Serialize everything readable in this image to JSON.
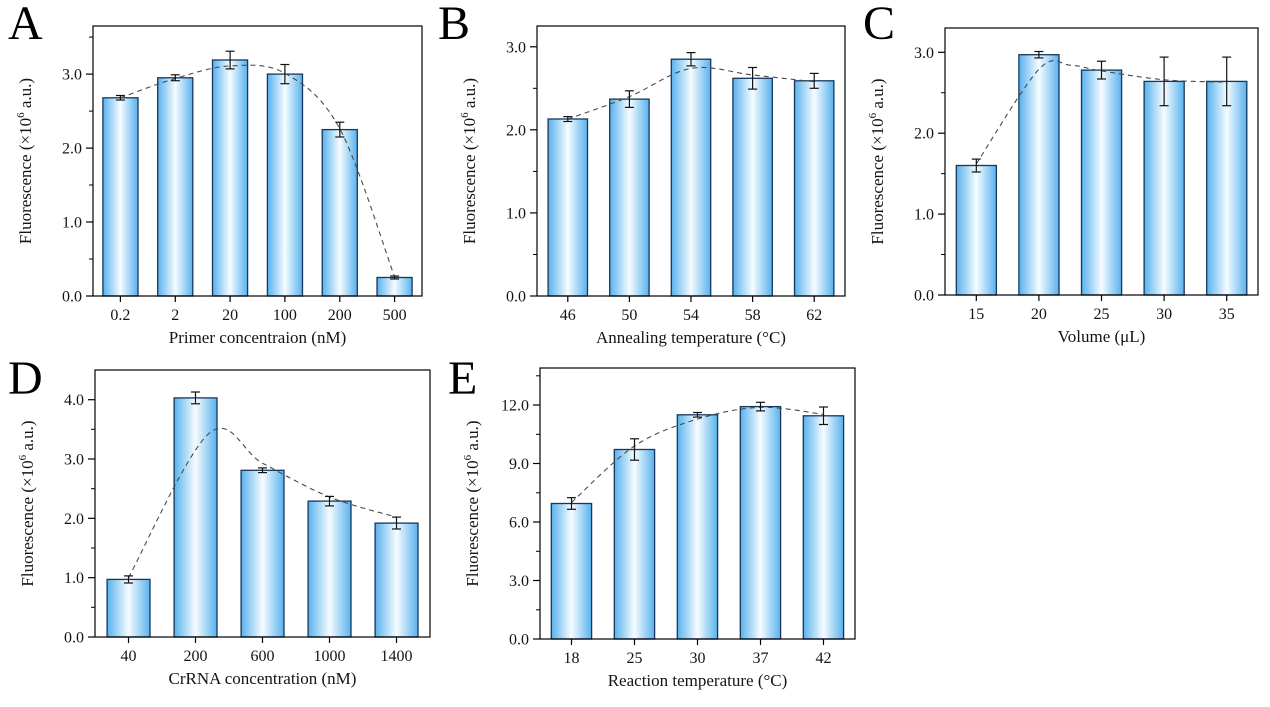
{
  "figure": {
    "background": "#ffffff",
    "description_colors": {
      "bar_edge_stroke": "#17375a",
      "bar_side_blue": "#58b2ee",
      "bar_center_highlight": "#f6fcff",
      "axis_frame": "#000000",
      "error_bar": "#111111",
      "trend_line": "#4a4a4a",
      "text": "#141414"
    }
  },
  "chart_data": [
    {
      "id": "A",
      "type": "bar",
      "panel_label": "A",
      "xlabel": "Primer concentraion (nM)",
      "ylabel_prefix": "Fluorescence (×10",
      "ylabel_sup": "6",
      "ylabel_suffix": " a.u.)",
      "categories": [
        "0.2",
        "2",
        "20",
        "100",
        "200",
        "500"
      ],
      "values": [
        2.68,
        2.95,
        3.19,
        3.0,
        2.25,
        0.25
      ],
      "errors": [
        0.03,
        0.04,
        0.12,
        0.13,
        0.1,
        0.02
      ],
      "curve": [
        {
          "i": 0,
          "v": 2.68
        },
        {
          "i": 1,
          "v": 2.94
        },
        {
          "i": 2,
          "v": 3.11
        },
        {
          "i": 3,
          "v": 3.01
        },
        {
          "i": 4,
          "v": 2.26
        },
        {
          "i": 5,
          "v": 0.26
        }
      ],
      "ylim": [
        0,
        3.65
      ],
      "yticks": [
        {
          "v": 0,
          "label": "0.0"
        },
        {
          "v": 1,
          "label": "1.0"
        },
        {
          "v": 2,
          "label": "2.0"
        },
        {
          "v": 3,
          "label": "3.0"
        }
      ],
      "minor_tick_step": 0.5,
      "grid": false,
      "legend": null
    },
    {
      "id": "B",
      "type": "bar",
      "panel_label": "B",
      "xlabel": "Annealing temperature (°C)",
      "ylabel_prefix": "Fluorescence (×10",
      "ylabel_sup": "6",
      "ylabel_suffix": " a.u.)",
      "categories": [
        "46",
        "50",
        "54",
        "58",
        "62"
      ],
      "values": [
        2.13,
        2.37,
        2.85,
        2.62,
        2.59
      ],
      "errors": [
        0.03,
        0.1,
        0.08,
        0.13,
        0.09
      ],
      "curve": [
        {
          "i": 0,
          "v": 2.13
        },
        {
          "i": 1,
          "v": 2.4
        },
        {
          "i": 2,
          "v": 2.74
        },
        {
          "i": 3,
          "v": 2.66
        },
        {
          "i": 4,
          "v": 2.58
        }
      ],
      "ylim": [
        0,
        3.25
      ],
      "yticks": [
        {
          "v": 0,
          "label": "0.0"
        },
        {
          "v": 1,
          "label": "1.0"
        },
        {
          "v": 2,
          "label": "2.0"
        },
        {
          "v": 3,
          "label": "3.0"
        }
      ],
      "minor_tick_step": 0.5,
      "grid": false,
      "legend": null
    },
    {
      "id": "C",
      "type": "bar",
      "panel_label": "C",
      "xlabel": "Volume (μL)",
      "ylabel_prefix": "Fluorescence (×10",
      "ylabel_sup": "6",
      "ylabel_suffix": " a.u.)",
      "categories": [
        "15",
        "20",
        "25",
        "30",
        "35"
      ],
      "values": [
        1.6,
        2.97,
        2.78,
        2.64,
        2.64
      ],
      "errors": [
        0.08,
        0.04,
        0.11,
        0.3,
        0.3
      ],
      "curve": [
        {
          "i": 0,
          "v": 1.62
        },
        {
          "i": 1,
          "v": 2.79
        },
        {
          "i": 1.5,
          "v": 2.84
        },
        {
          "i": 2,
          "v": 2.77
        },
        {
          "i": 3,
          "v": 2.66
        },
        {
          "i": 4,
          "v": 2.63
        }
      ],
      "ylim": [
        0,
        3.3
      ],
      "yticks": [
        {
          "v": 0,
          "label": "0.0"
        },
        {
          "v": 1,
          "label": "1.0"
        },
        {
          "v": 2,
          "label": "2.0"
        },
        {
          "v": 3,
          "label": "3.0"
        }
      ],
      "minor_tick_step": 0.5,
      "grid": false,
      "legend": null
    },
    {
      "id": "D",
      "type": "bar",
      "panel_label": "D",
      "xlabel": "CrRNA concentration (nM)",
      "ylabel_prefix": "Fluorescence (×10",
      "ylabel_sup": "6",
      "ylabel_suffix": " a.u.)",
      "categories": [
        "40",
        "200",
        "600",
        "1000",
        "1400"
      ],
      "values": [
        0.97,
        4.03,
        2.81,
        2.29,
        1.92
      ],
      "errors": [
        0.06,
        0.1,
        0.04,
        0.08,
        0.1
      ],
      "curve": [
        {
          "i": 0,
          "v": 1.0
        },
        {
          "i": 1.2,
          "v": 3.43
        },
        {
          "i": 2,
          "v": 2.93
        },
        {
          "i": 3,
          "v": 2.36
        },
        {
          "i": 4,
          "v": 2.02
        }
      ],
      "ylim": [
        0,
        4.5
      ],
      "yticks": [
        {
          "v": 0,
          "label": "0.0"
        },
        {
          "v": 1,
          "label": "1.0"
        },
        {
          "v": 2,
          "label": "2.0"
        },
        {
          "v": 3,
          "label": "3.0"
        },
        {
          "v": 4,
          "label": "4.0"
        }
      ],
      "minor_tick_step": 0.5,
      "grid": false,
      "legend": null
    },
    {
      "id": "E",
      "type": "bar",
      "panel_label": "E",
      "xlabel": "Reaction temperature (°C)",
      "ylabel_prefix": "Fluorescence (×10",
      "ylabel_sup": "6",
      "ylabel_suffix": " a.u.)",
      "categories": [
        "18",
        "25",
        "30",
        "37",
        "42"
      ],
      "values": [
        6.95,
        9.72,
        11.5,
        11.92,
        11.45
      ],
      "errors": [
        0.3,
        0.55,
        0.12,
        0.22,
        0.45
      ],
      "curve": [
        {
          "i": 0,
          "v": 7.0
        },
        {
          "i": 1,
          "v": 9.9
        },
        {
          "i": 2,
          "v": 11.28
        },
        {
          "i": 3,
          "v": 11.88
        },
        {
          "i": 4,
          "v": 11.52
        }
      ],
      "ylim": [
        0,
        13.9
      ],
      "yticks": [
        {
          "v": 0,
          "label": "0.0"
        },
        {
          "v": 3,
          "label": "3.0"
        },
        {
          "v": 6,
          "label": "6.0"
        },
        {
          "v": 9,
          "label": "9.0"
        },
        {
          "v": 12,
          "label": "12.0"
        }
      ],
      "minor_tick_step": 1.5,
      "grid": false,
      "legend": null
    }
  ]
}
